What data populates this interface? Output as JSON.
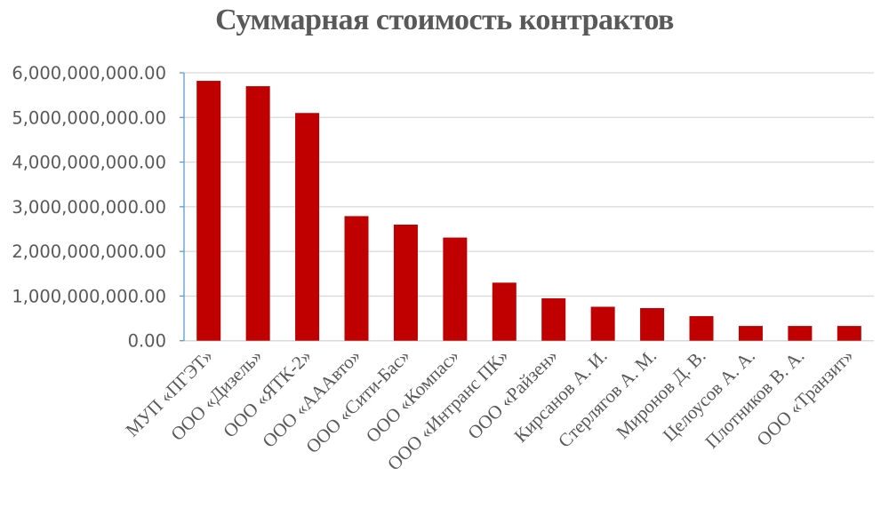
{
  "chart_data": {
    "type": "bar",
    "title": "Суммарная стоимость контрактов",
    "xlabel": "",
    "ylabel": "",
    "ylim": [
      0,
      6000000000
    ],
    "yticks": [
      0,
      1000000000,
      2000000000,
      3000000000,
      4000000000,
      5000000000,
      6000000000
    ],
    "ytick_labels": [
      "0.00",
      "1,000,000,000.00",
      "2,000,000,000.00",
      "3,000,000,000.00",
      "4,000,000,000.00",
      "5,000,000,000.00",
      "6,000,000,000.00"
    ],
    "grid": true,
    "legend": null,
    "bar_color": "#C00000",
    "categories": [
      "МУП «ПГЭТ»",
      "ООО «Дизель»",
      "ООО «ЯТК-2»",
      "ООО «AAАвто»",
      "ООО «Сити-Бас»",
      "ООО «Компас»",
      "ООО «Интранс ПК»",
      "ООО «Райзен»",
      "Кирсанов А. И.",
      "Стерлягов А. М.",
      "Миронов Д. В.",
      "Целоусов А. А.",
      "Плотников В. А.",
      "ООО «Транзит»"
    ],
    "values": [
      5820000000,
      5700000000,
      5100000000,
      2790000000,
      2600000000,
      2310000000,
      1300000000,
      950000000,
      760000000,
      730000000,
      550000000,
      330000000,
      330000000,
      330000000
    ]
  }
}
